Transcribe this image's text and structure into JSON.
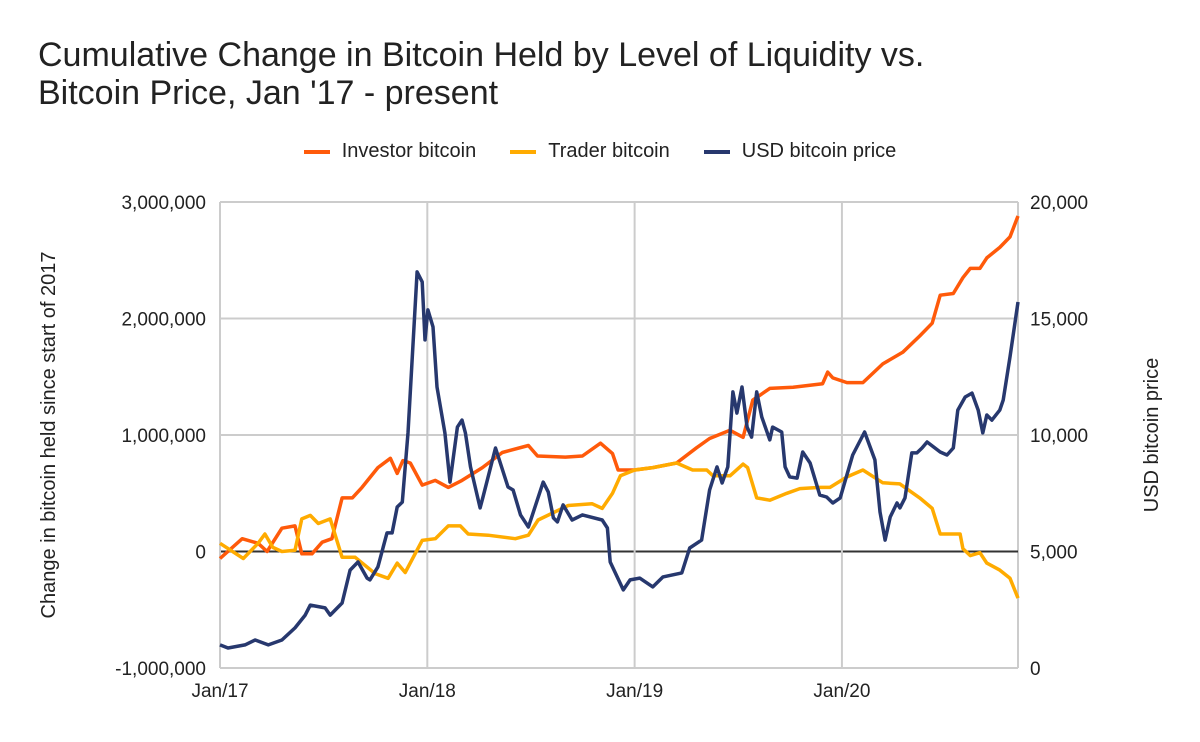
{
  "chart_data": {
    "type": "line",
    "title": "Cumulative Change in Bitcoin Held by Level of Liquidity vs. Bitcoin Price, Jan '17 - present",
    "title_lines": [
      "Cumulative Change in Bitcoin Held by Level of Liquidity vs.",
      "Bitcoin Price, Jan '17 - present"
    ],
    "ylabel": "Change in bitcoin held since start of 2017",
    "y2label": "USD bitcoin price",
    "xlabel": "",
    "legend_position": "top",
    "grid": true,
    "x_range": [
      "2017-01-01",
      "2020-11-06"
    ],
    "x_ticks": [
      {
        "date": "2017-01-01",
        "label": "Jan/17"
      },
      {
        "date": "2018-01-01",
        "label": "Jan/18"
      },
      {
        "date": "2019-01-01",
        "label": "Jan/19"
      },
      {
        "date": "2020-01-01",
        "label": "Jan/20"
      }
    ],
    "ylim": [
      -1000000,
      3000000
    ],
    "y_ticks": [
      {
        "value": -1000000,
        "label": "-1,000,000"
      },
      {
        "value": 0,
        "label": "0"
      },
      {
        "value": 1000000,
        "label": "1,000,000"
      },
      {
        "value": 2000000,
        "label": "2,000,000"
      },
      {
        "value": 3000000,
        "label": "3,000,000"
      }
    ],
    "y2lim": [
      0,
      20000
    ],
    "y2_ticks": [
      {
        "value": 0,
        "label": "0"
      },
      {
        "value": 5000,
        "label": "5,000"
      },
      {
        "value": 10000,
        "label": "10,000"
      },
      {
        "value": 15000,
        "label": "15,000"
      },
      {
        "value": 20000,
        "label": "20,000"
      }
    ],
    "series": [
      {
        "name": "Investor bitcoin",
        "axis": "left",
        "color": "#FF5A0A",
        "points": [
          [
            "2017-01-01",
            -60000
          ],
          [
            "2017-02-09",
            110000
          ],
          [
            "2017-03-09",
            70000
          ],
          [
            "2017-03-25",
            0
          ],
          [
            "2017-04-20",
            200000
          ],
          [
            "2017-05-13",
            220000
          ],
          [
            "2017-05-25",
            -20000
          ],
          [
            "2017-06-12",
            -20000
          ],
          [
            "2017-06-30",
            80000
          ],
          [
            "2017-07-17",
            110000
          ],
          [
            "2017-08-04",
            460000
          ],
          [
            "2017-08-22",
            460000
          ],
          [
            "2017-09-08",
            550000
          ],
          [
            "2017-10-06",
            720000
          ],
          [
            "2017-10-28",
            800000
          ],
          [
            "2017-11-09",
            670000
          ],
          [
            "2017-11-19",
            780000
          ],
          [
            "2017-12-02",
            760000
          ],
          [
            "2017-12-23",
            570000
          ],
          [
            "2018-01-15",
            610000
          ],
          [
            "2018-02-07",
            550000
          ],
          [
            "2018-03-03",
            610000
          ],
          [
            "2018-04-08",
            720000
          ],
          [
            "2018-05-13",
            850000
          ],
          [
            "2018-06-28",
            910000
          ],
          [
            "2018-07-14",
            820000
          ],
          [
            "2018-09-01",
            810000
          ],
          [
            "2018-10-01",
            820000
          ],
          [
            "2018-11-02",
            930000
          ],
          [
            "2018-11-23",
            840000
          ],
          [
            "2018-12-03",
            700000
          ],
          [
            "2019-01-01",
            700000
          ],
          [
            "2019-02-02",
            720000
          ],
          [
            "2019-03-16",
            760000
          ],
          [
            "2019-04-20",
            890000
          ],
          [
            "2019-05-13",
            970000
          ],
          [
            "2019-06-18",
            1040000
          ],
          [
            "2019-07-11",
            980000
          ],
          [
            "2019-07-28",
            1300000
          ],
          [
            "2019-08-27",
            1400000
          ],
          [
            "2019-10-07",
            1410000
          ],
          [
            "2019-11-28",
            1440000
          ],
          [
            "2019-12-07",
            1540000
          ],
          [
            "2019-12-16",
            1490000
          ],
          [
            "2020-01-10",
            1450000
          ],
          [
            "2020-02-07",
            1450000
          ],
          [
            "2020-03-13",
            1610000
          ],
          [
            "2020-04-17",
            1710000
          ],
          [
            "2020-05-17",
            1850000
          ],
          [
            "2020-06-08",
            1960000
          ],
          [
            "2020-06-22",
            2200000
          ],
          [
            "2020-07-15",
            2215000
          ],
          [
            "2020-08-01",
            2350000
          ],
          [
            "2020-08-14",
            2430000
          ],
          [
            "2020-08-31",
            2430000
          ],
          [
            "2020-09-12",
            2520000
          ],
          [
            "2020-10-05",
            2610000
          ],
          [
            "2020-10-23",
            2700000
          ],
          [
            "2020-11-06",
            2880000
          ]
        ]
      },
      {
        "name": "Trader bitcoin",
        "axis": "left",
        "color": "#FFAB00",
        "points": [
          [
            "2017-01-01",
            70000
          ],
          [
            "2017-02-11",
            -60000
          ],
          [
            "2017-03-09",
            70000
          ],
          [
            "2017-03-21",
            150000
          ],
          [
            "2017-04-04",
            35000
          ],
          [
            "2017-04-20",
            0
          ],
          [
            "2017-05-13",
            10000
          ],
          [
            "2017-05-25",
            280000
          ],
          [
            "2017-06-09",
            310000
          ],
          [
            "2017-06-23",
            240000
          ],
          [
            "2017-07-14",
            280000
          ],
          [
            "2017-08-04",
            -50000
          ],
          [
            "2017-08-27",
            -50000
          ],
          [
            "2017-10-01",
            -190000
          ],
          [
            "2017-10-24",
            -230000
          ],
          [
            "2017-11-09",
            -100000
          ],
          [
            "2017-11-23",
            -180000
          ],
          [
            "2017-12-23",
            95000
          ],
          [
            "2018-01-15",
            110000
          ],
          [
            "2018-02-07",
            220000
          ],
          [
            "2018-02-28",
            220000
          ],
          [
            "2018-03-14",
            150000
          ],
          [
            "2018-04-18",
            140000
          ],
          [
            "2018-06-05",
            110000
          ],
          [
            "2018-06-28",
            140000
          ],
          [
            "2018-07-15",
            270000
          ],
          [
            "2018-09-06",
            395000
          ],
          [
            "2018-10-18",
            410000
          ],
          [
            "2018-11-05",
            370000
          ],
          [
            "2018-11-23",
            500000
          ],
          [
            "2018-12-07",
            650000
          ],
          [
            "2019-01-01",
            700000
          ],
          [
            "2019-02-02",
            720000
          ],
          [
            "2019-03-16",
            760000
          ],
          [
            "2019-04-13",
            700000
          ],
          [
            "2019-05-08",
            700000
          ],
          [
            "2019-05-19",
            650000
          ],
          [
            "2019-06-18",
            650000
          ],
          [
            "2019-07-11",
            750000
          ],
          [
            "2019-07-19",
            720000
          ],
          [
            "2019-08-04",
            460000
          ],
          [
            "2019-08-27",
            440000
          ],
          [
            "2019-09-26",
            500000
          ],
          [
            "2019-10-19",
            540000
          ],
          [
            "2019-11-23",
            550000
          ],
          [
            "2019-12-11",
            550000
          ],
          [
            "2020-01-10",
            640000
          ],
          [
            "2020-02-07",
            700000
          ],
          [
            "2020-03-13",
            590000
          ],
          [
            "2020-04-12",
            580000
          ],
          [
            "2020-05-17",
            460000
          ],
          [
            "2020-06-08",
            370000
          ],
          [
            "2020-06-22",
            150000
          ],
          [
            "2020-07-27",
            150000
          ],
          [
            "2020-08-01",
            25000
          ],
          [
            "2020-08-14",
            -35000
          ],
          [
            "2020-08-31",
            -10000
          ],
          [
            "2020-09-12",
            -100000
          ],
          [
            "2020-10-05",
            -160000
          ],
          [
            "2020-10-23",
            -230000
          ],
          [
            "2020-11-06",
            -400000
          ]
        ]
      },
      {
        "name": "USD bitcoin price",
        "axis": "right",
        "color": "#27386E",
        "points": [
          [
            "2017-01-01",
            990
          ],
          [
            "2017-01-15",
            860
          ],
          [
            "2017-02-14",
            990
          ],
          [
            "2017-03-04",
            1200
          ],
          [
            "2017-03-27",
            990
          ],
          [
            "2017-04-20",
            1200
          ],
          [
            "2017-05-13",
            1720
          ],
          [
            "2017-05-31",
            2270
          ],
          [
            "2017-06-09",
            2700
          ],
          [
            "2017-07-05",
            2580
          ],
          [
            "2017-07-14",
            2270
          ],
          [
            "2017-08-04",
            2790
          ],
          [
            "2017-08-18",
            4200
          ],
          [
            "2017-09-01",
            4550
          ],
          [
            "2017-09-17",
            3860
          ],
          [
            "2017-09-22",
            3780
          ],
          [
            "2017-10-06",
            4340
          ],
          [
            "2017-10-22",
            5800
          ],
          [
            "2017-10-31",
            5800
          ],
          [
            "2017-11-09",
            6910
          ],
          [
            "2017-11-18",
            7120
          ],
          [
            "2017-11-28",
            10090
          ],
          [
            "2017-12-14",
            17000
          ],
          [
            "2017-12-23",
            16570
          ],
          [
            "2017-12-28",
            14080
          ],
          [
            "2018-01-02",
            15370
          ],
          [
            "2018-01-11",
            14640
          ],
          [
            "2018-01-18",
            12060
          ],
          [
            "2018-02-01",
            10090
          ],
          [
            "2018-02-10",
            7980
          ],
          [
            "2018-02-23",
            10340
          ],
          [
            "2018-03-03",
            10640
          ],
          [
            "2018-03-09",
            10090
          ],
          [
            "2018-03-18",
            8630
          ],
          [
            "2018-04-04",
            6870
          ],
          [
            "2018-04-09",
            7340
          ],
          [
            "2018-05-01",
            9440
          ],
          [
            "2018-05-23",
            7770
          ],
          [
            "2018-06-01",
            7640
          ],
          [
            "2018-06-14",
            6570
          ],
          [
            "2018-06-28",
            6050
          ],
          [
            "2018-07-05",
            6570
          ],
          [
            "2018-07-24",
            7980
          ],
          [
            "2018-08-02",
            7550
          ],
          [
            "2018-08-11",
            6440
          ],
          [
            "2018-08-18",
            6270
          ],
          [
            "2018-08-28",
            7000
          ],
          [
            "2018-09-13",
            6350
          ],
          [
            "2018-10-01",
            6570
          ],
          [
            "2018-11-05",
            6350
          ],
          [
            "2018-11-14",
            6010
          ],
          [
            "2018-11-19",
            4550
          ],
          [
            "2018-12-12",
            3350
          ],
          [
            "2018-12-24",
            3780
          ],
          [
            "2019-01-10",
            3860
          ],
          [
            "2019-02-02",
            3480
          ],
          [
            "2019-02-20",
            3910
          ],
          [
            "2019-03-25",
            4080
          ],
          [
            "2019-04-08",
            5150
          ],
          [
            "2019-04-29",
            5490
          ],
          [
            "2019-05-13",
            7640
          ],
          [
            "2019-05-26",
            8630
          ],
          [
            "2019-06-04",
            7940
          ],
          [
            "2019-06-14",
            8630
          ],
          [
            "2019-06-23",
            11850
          ],
          [
            "2019-06-30",
            10940
          ],
          [
            "2019-07-09",
            12060
          ],
          [
            "2019-07-18",
            10340
          ],
          [
            "2019-07-26",
            9910
          ],
          [
            "2019-08-04",
            11850
          ],
          [
            "2019-08-13",
            10770
          ],
          [
            "2019-08-27",
            9790
          ],
          [
            "2019-09-01",
            10340
          ],
          [
            "2019-09-17",
            10130
          ],
          [
            "2019-09-23",
            8630
          ],
          [
            "2019-10-01",
            8200
          ],
          [
            "2019-10-14",
            8150
          ],
          [
            "2019-10-24",
            9270
          ],
          [
            "2019-11-06",
            8800
          ],
          [
            "2019-11-23",
            7420
          ],
          [
            "2019-12-05",
            7340
          ],
          [
            "2019-12-16",
            7080
          ],
          [
            "2019-12-29",
            7300
          ],
          [
            "2020-01-20",
            9140
          ],
          [
            "2020-02-10",
            10130
          ],
          [
            "2020-02-28",
            8930
          ],
          [
            "2020-03-08",
            6700
          ],
          [
            "2020-03-17",
            5490
          ],
          [
            "2020-03-26",
            6480
          ],
          [
            "2020-04-07",
            7080
          ],
          [
            "2020-04-12",
            6870
          ],
          [
            "2020-04-21",
            7300
          ],
          [
            "2020-05-03",
            9230
          ],
          [
            "2020-05-12",
            9230
          ],
          [
            "2020-05-21",
            9440
          ],
          [
            "2020-05-30",
            9700
          ],
          [
            "2020-06-22",
            9270
          ],
          [
            "2020-07-04",
            9140
          ],
          [
            "2020-07-15",
            9440
          ],
          [
            "2020-07-23",
            11070
          ],
          [
            "2020-08-05",
            11630
          ],
          [
            "2020-08-17",
            11800
          ],
          [
            "2020-08-28",
            11070
          ],
          [
            "2020-09-05",
            10090
          ],
          [
            "2020-09-12",
            10860
          ],
          [
            "2020-09-21",
            10640
          ],
          [
            "2020-10-05",
            11070
          ],
          [
            "2020-10-11",
            11500
          ],
          [
            "2020-10-23",
            13350
          ],
          [
            "2020-11-06",
            15710
          ]
        ]
      }
    ]
  }
}
